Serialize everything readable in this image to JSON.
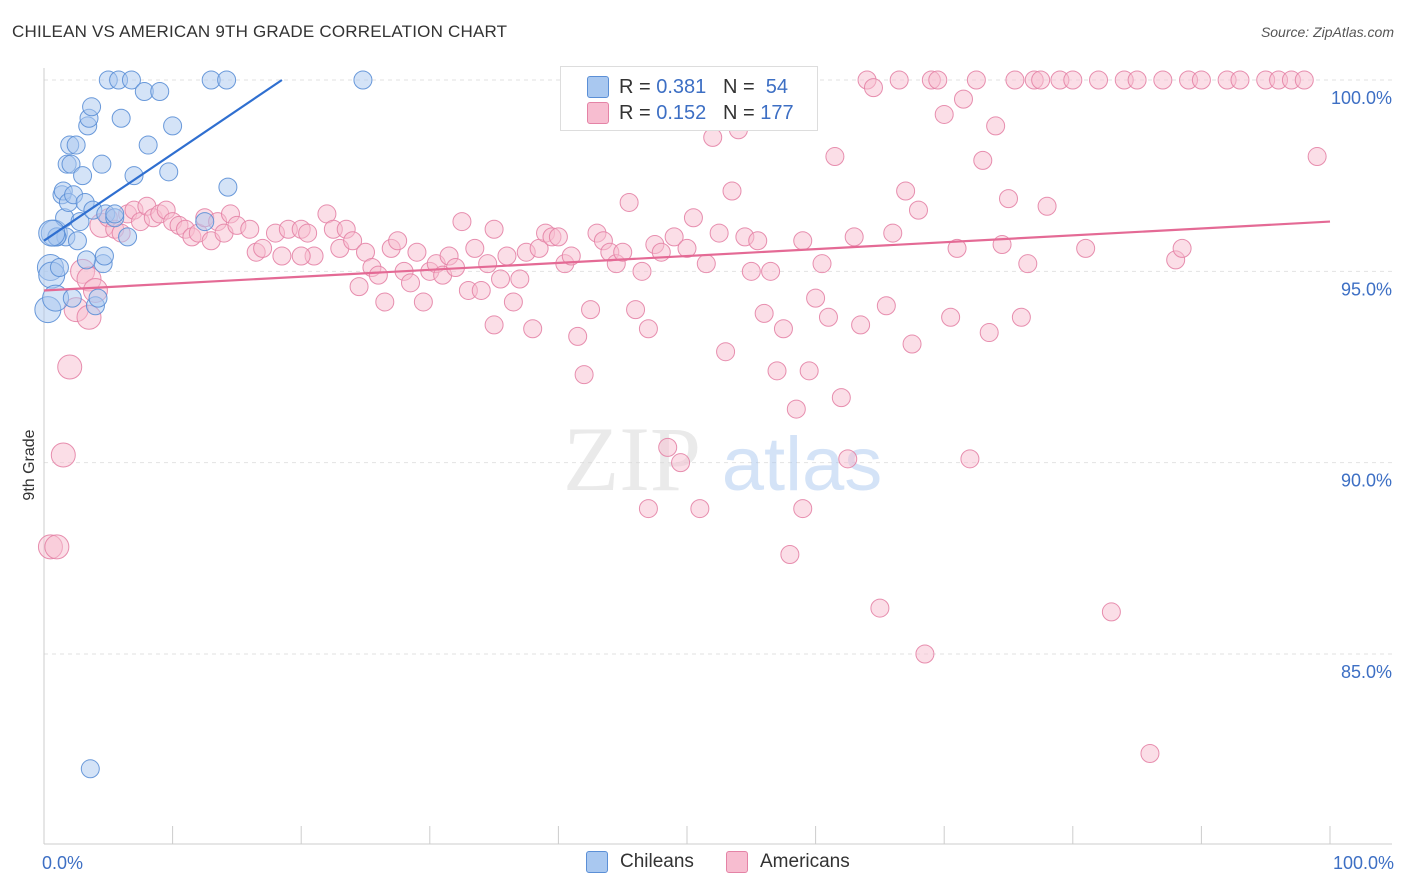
{
  "title": "CHILEAN VS AMERICAN 9TH GRADE CORRELATION CHART",
  "source": "Source: ZipAtlas.com",
  "watermark": {
    "zip": "ZIP",
    "atlas": "atlas"
  },
  "legend_stats": [
    {
      "r_label": "R = ",
      "r_value": "0.381",
      "n_label": "N = ",
      "n_value": "54",
      "color": "#a9c8f0",
      "stroke": "#5b8fd6"
    },
    {
      "r_label": "R = ",
      "r_value": "0.152",
      "n_label": "N = ",
      "n_value": "177",
      "color": "#f7bdd0",
      "stroke": "#e483a6"
    }
  ],
  "bottom_legend": [
    {
      "label": "Chileans",
      "color": "#a9c8f0",
      "stroke": "#5b8fd6"
    },
    {
      "label": "Americans",
      "color": "#f7bdd0",
      "stroke": "#e483a6"
    }
  ],
  "chart_data": {
    "type": "scatter",
    "title": "CHILEAN VS AMERICAN 9TH GRADE CORRELATION CHART",
    "xlabel": "",
    "ylabel": "9th Grade",
    "xlim": [
      0,
      100
    ],
    "ylim": [
      80.5,
      100.8
    ],
    "x_tick_labels": [
      "0.0%",
      "100.0%"
    ],
    "y_ticks": [
      85,
      90,
      95,
      100
    ],
    "y_tick_labels": [
      "85.0%",
      "90.0%",
      "95.0%",
      "100.0%"
    ],
    "grid": true,
    "series": [
      {
        "name": "Chileans",
        "color": "#a9c8f0",
        "stroke": "#5b8fd6",
        "trend": {
          "x": [
            0.0,
            18.5
          ],
          "y": [
            95.8,
            100.0
          ]
        },
        "points": [
          [
            0.3,
            94.0
          ],
          [
            0.5,
            95.1
          ],
          [
            0.6,
            94.9
          ],
          [
            0.8,
            96.0
          ],
          [
            0.9,
            94.3
          ],
          [
            1.0,
            95.9
          ],
          [
            1.2,
            95.1
          ],
          [
            1.4,
            97.0
          ],
          [
            1.5,
            97.1
          ],
          [
            1.6,
            96.4
          ],
          [
            1.7,
            95.9
          ],
          [
            1.8,
            97.8
          ],
          [
            1.9,
            96.8
          ],
          [
            2.0,
            98.3
          ],
          [
            2.1,
            97.8
          ],
          [
            2.3,
            97.0
          ],
          [
            2.5,
            98.3
          ],
          [
            2.6,
            95.8
          ],
          [
            2.8,
            96.3
          ],
          [
            3.0,
            97.5
          ],
          [
            3.2,
            96.8
          ],
          [
            3.4,
            98.8
          ],
          [
            3.5,
            99.0
          ],
          [
            3.7,
            99.3
          ],
          [
            3.8,
            96.6
          ],
          [
            4.0,
            94.1
          ],
          [
            4.2,
            94.3
          ],
          [
            4.5,
            97.8
          ],
          [
            4.6,
            95.2
          ],
          [
            4.7,
            95.4
          ],
          [
            4.8,
            96.5
          ],
          [
            5.0,
            100.0
          ],
          [
            5.5,
            96.4
          ],
          [
            5.8,
            100.0
          ],
          [
            6.0,
            99.0
          ],
          [
            6.5,
            95.9
          ],
          [
            6.8,
            100.0
          ],
          [
            7.0,
            97.5
          ],
          [
            7.8,
            99.7
          ],
          [
            8.1,
            98.3
          ],
          [
            9.0,
            99.7
          ],
          [
            9.7,
            97.6
          ],
          [
            10.0,
            98.8
          ],
          [
            12.5,
            96.3
          ],
          [
            13.0,
            100.0
          ],
          [
            14.2,
            100.0
          ],
          [
            14.3,
            97.2
          ],
          [
            24.8,
            100.0
          ],
          [
            1.0,
            95.9
          ],
          [
            3.3,
            95.3
          ],
          [
            0.6,
            96.0
          ],
          [
            2.2,
            94.3
          ],
          [
            5.5,
            96.5
          ],
          [
            3.6,
            82.0
          ]
        ]
      },
      {
        "name": "Americans",
        "color": "#f7bdd0",
        "stroke": "#e483a6",
        "trend": {
          "x": [
            0.0,
            100.0
          ],
          "y": [
            94.5,
            96.3
          ]
        },
        "points": [
          [
            0.5,
            87.8
          ],
          [
            1.0,
            87.8
          ],
          [
            1.5,
            90.2
          ],
          [
            2.0,
            92.5
          ],
          [
            2.5,
            94.0
          ],
          [
            3.0,
            95.0
          ],
          [
            3.5,
            94.8
          ],
          [
            4.0,
            94.5
          ],
          [
            4.5,
            96.2
          ],
          [
            5.0,
            96.4
          ],
          [
            5.5,
            96.1
          ],
          [
            6.0,
            96.0
          ],
          [
            6.5,
            96.5
          ],
          [
            7.0,
            96.6
          ],
          [
            7.5,
            96.3
          ],
          [
            8.0,
            96.7
          ],
          [
            8.5,
            96.4
          ],
          [
            9.0,
            96.5
          ],
          [
            9.5,
            96.6
          ],
          [
            10.0,
            96.3
          ],
          [
            10.5,
            96.2
          ],
          [
            11.0,
            96.1
          ],
          [
            11.5,
            95.9
          ],
          [
            12.0,
            96.0
          ],
          [
            12.5,
            96.4
          ],
          [
            13.0,
            95.8
          ],
          [
            13.5,
            96.3
          ],
          [
            14.0,
            96.0
          ],
          [
            14.5,
            96.5
          ],
          [
            15.0,
            96.2
          ],
          [
            16.0,
            96.1
          ],
          [
            16.5,
            95.5
          ],
          [
            17.0,
            95.6
          ],
          [
            18.0,
            96.0
          ],
          [
            18.5,
            95.4
          ],
          [
            19.0,
            96.1
          ],
          [
            20.0,
            96.1
          ],
          [
            20.5,
            96.0
          ],
          [
            21.0,
            95.4
          ],
          [
            22.0,
            96.5
          ],
          [
            22.5,
            96.1
          ],
          [
            23.0,
            95.6
          ],
          [
            23.5,
            96.1
          ],
          [
            24.0,
            95.8
          ],
          [
            24.5,
            94.6
          ],
          [
            25.0,
            95.5
          ],
          [
            25.5,
            95.1
          ],
          [
            26.0,
            94.9
          ],
          [
            26.5,
            94.2
          ],
          [
            27.0,
            95.6
          ],
          [
            27.5,
            95.8
          ],
          [
            28.0,
            95.0
          ],
          [
            28.5,
            94.7
          ],
          [
            29.0,
            95.5
          ],
          [
            29.5,
            94.2
          ],
          [
            30.0,
            95.0
          ],
          [
            30.5,
            95.2
          ],
          [
            31.0,
            94.9
          ],
          [
            31.5,
            95.4
          ],
          [
            32.0,
            95.1
          ],
          [
            32.5,
            96.3
          ],
          [
            33.0,
            94.5
          ],
          [
            33.5,
            95.6
          ],
          [
            34.0,
            94.5
          ],
          [
            34.5,
            95.2
          ],
          [
            35.0,
            93.6
          ],
          [
            35.5,
            94.8
          ],
          [
            36.0,
            95.4
          ],
          [
            36.5,
            94.2
          ],
          [
            37.0,
            94.8
          ],
          [
            37.5,
            95.5
          ],
          [
            38.0,
            93.5
          ],
          [
            38.5,
            95.6
          ],
          [
            39.0,
            96.0
          ],
          [
            39.5,
            95.9
          ],
          [
            40.0,
            95.9
          ],
          [
            40.5,
            95.2
          ],
          [
            41.0,
            95.4
          ],
          [
            41.5,
            93.3
          ],
          [
            42.0,
            92.3
          ],
          [
            42.5,
            94.0
          ],
          [
            43.0,
            96.0
          ],
          [
            43.5,
            95.8
          ],
          [
            44.0,
            95.5
          ],
          [
            44.5,
            95.2
          ],
          [
            45.0,
            95.5
          ],
          [
            45.5,
            96.8
          ],
          [
            46.0,
            94.0
          ],
          [
            46.5,
            95.0
          ],
          [
            47.0,
            93.5
          ],
          [
            47.5,
            95.7
          ],
          [
            48.0,
            95.5
          ],
          [
            48.5,
            90.4
          ],
          [
            49.0,
            95.9
          ],
          [
            49.5,
            90.0
          ],
          [
            50.0,
            95.6
          ],
          [
            50.5,
            96.4
          ],
          [
            51.0,
            88.8
          ],
          [
            51.5,
            95.2
          ],
          [
            52.0,
            98.5
          ],
          [
            52.5,
            96.0
          ],
          [
            53.0,
            92.9
          ],
          [
            53.5,
            97.1
          ],
          [
            54.0,
            98.7
          ],
          [
            54.5,
            95.9
          ],
          [
            55.0,
            95.0
          ],
          [
            55.5,
            95.8
          ],
          [
            56.0,
            93.9
          ],
          [
            56.5,
            95.0
          ],
          [
            57.0,
            92.4
          ],
          [
            57.5,
            93.5
          ],
          [
            58.0,
            87.6
          ],
          [
            58.5,
            91.4
          ],
          [
            59.0,
            95.8
          ],
          [
            59.5,
            92.4
          ],
          [
            60.0,
            94.3
          ],
          [
            60.5,
            95.2
          ],
          [
            61.0,
            93.8
          ],
          [
            61.5,
            98.0
          ],
          [
            62.0,
            91.7
          ],
          [
            62.5,
            90.1
          ],
          [
            63.0,
            95.9
          ],
          [
            63.5,
            93.6
          ],
          [
            64.0,
            100.0
          ],
          [
            64.5,
            99.8
          ],
          [
            65.0,
            86.2
          ],
          [
            65.5,
            94.1
          ],
          [
            66.0,
            96.0
          ],
          [
            66.5,
            100.0
          ],
          [
            67.0,
            97.1
          ],
          [
            67.5,
            93.1
          ],
          [
            68.0,
            96.6
          ],
          [
            68.5,
            85.0
          ],
          [
            69.0,
            100.0
          ],
          [
            69.5,
            100.0
          ],
          [
            70.0,
            99.1
          ],
          [
            70.5,
            93.8
          ],
          [
            71.0,
            95.6
          ],
          [
            71.5,
            99.5
          ],
          [
            72.0,
            90.1
          ],
          [
            72.5,
            100.0
          ],
          [
            73.0,
            97.9
          ],
          [
            73.5,
            93.4
          ],
          [
            74.0,
            98.8
          ],
          [
            74.5,
            95.7
          ],
          [
            75.0,
            96.9
          ],
          [
            75.5,
            100.0
          ],
          [
            76.0,
            93.8
          ],
          [
            76.5,
            95.2
          ],
          [
            77.0,
            100.0
          ],
          [
            77.5,
            100.0
          ],
          [
            78.0,
            96.7
          ],
          [
            79.0,
            100.0
          ],
          [
            80.0,
            100.0
          ],
          [
            81.0,
            95.6
          ],
          [
            82.0,
            100.0
          ],
          [
            83.0,
            86.1
          ],
          [
            84.0,
            100.0
          ],
          [
            85.0,
            100.0
          ],
          [
            86.0,
            82.4
          ],
          [
            87.0,
            100.0
          ],
          [
            88.0,
            95.3
          ],
          [
            88.5,
            95.6
          ],
          [
            89.0,
            100.0
          ],
          [
            90.0,
            100.0
          ],
          [
            92.0,
            100.0
          ],
          [
            93.0,
            100.0
          ],
          [
            95.0,
            100.0
          ],
          [
            96.0,
            100.0
          ],
          [
            97.0,
            100.0
          ],
          [
            98.0,
            100.0
          ],
          [
            99.0,
            98.0
          ],
          [
            47.0,
            88.8
          ],
          [
            35.0,
            96.1
          ],
          [
            20.0,
            95.4
          ],
          [
            59.0,
            88.8
          ],
          [
            3.5,
            93.8
          ]
        ]
      }
    ]
  }
}
